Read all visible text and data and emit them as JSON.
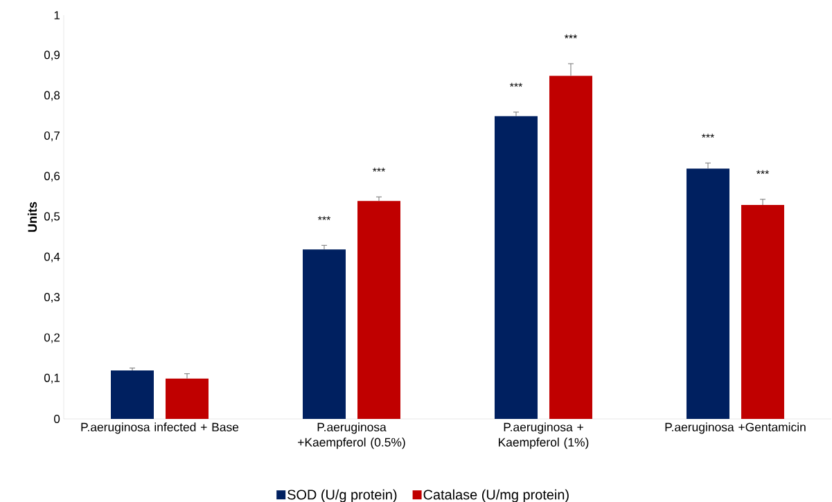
{
  "chart_data": {
    "type": "bar",
    "ylabel": "Units",
    "categories": [
      "P.aeruginosa infected  + Base",
      "P.aeruginosa +Kaempferol (0.5%)",
      "P.aeruginosa + Kaempferol (1%)",
      "P.aeruginosa +Gentamicin"
    ],
    "series": [
      {
        "name": "SOD (U/g protein)",
        "color": "#002060",
        "values": [
          0.12,
          0.42,
          0.75,
          0.62
        ],
        "errors": [
          0.006,
          0.01,
          0.01,
          0.014
        ]
      },
      {
        "name": "Catalase (U/mg protein)",
        "color": "#c00000",
        "values": [
          0.1,
          0.54,
          0.85,
          0.53
        ],
        "errors": [
          0.012,
          0.01,
          0.03,
          0.014
        ]
      }
    ],
    "ylim": [
      0,
      1
    ],
    "yticks": [
      0,
      {
        "value": 0.1,
        "label": "0,1"
      },
      {
        "value": 0.2,
        "label": "0,2"
      },
      {
        "value": 0.3,
        "label": "0,3"
      },
      {
        "value": 0.4,
        "label": "0,4"
      },
      {
        "value": 0.5,
        "label": "0,5"
      },
      {
        "value": 0.6,
        "label": "0,6"
      },
      {
        "value": 0.7,
        "label": "0,7"
      },
      {
        "value": 0.8,
        "label": "0,8"
      },
      {
        "value": 0.9,
        "label": "0,9"
      },
      1
    ],
    "annotations": [
      "***",
      "***",
      "***",
      "***",
      "***",
      "***"
    ],
    "grid": false,
    "legend": "bottom"
  }
}
